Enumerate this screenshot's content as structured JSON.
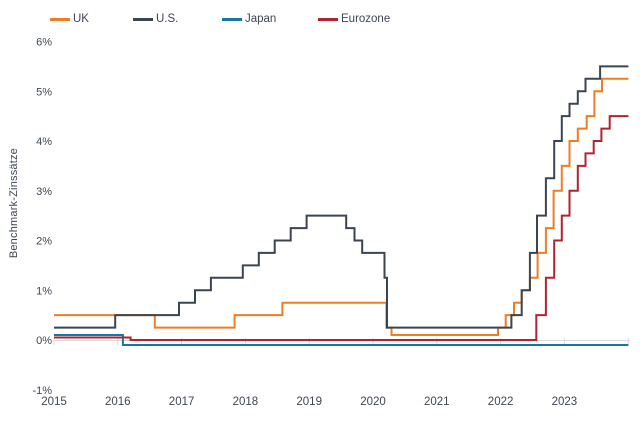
{
  "chart_data": {
    "type": "line",
    "variant": "step-after",
    "title": "",
    "xlabel": "",
    "ylabel": "Benchmark-Zinssätze",
    "unit": "%",
    "xlim": [
      2015,
      2024.05
    ],
    "ylim": [
      -1,
      6
    ],
    "grid": false,
    "legend_position": "top-left",
    "axis_color": "#d9d9d9",
    "text_color": "#3e4653",
    "background_color": "#ffffff",
    "x_ticks": [
      {
        "value": 2015,
        "label": "2015"
      },
      {
        "value": 2016,
        "label": "2016"
      },
      {
        "value": 2017,
        "label": "2017"
      },
      {
        "value": 2018,
        "label": "2018"
      },
      {
        "value": 2019,
        "label": "2019"
      },
      {
        "value": 2020,
        "label": "2020"
      },
      {
        "value": 2021,
        "label": "2021"
      },
      {
        "value": 2022,
        "label": "2022"
      },
      {
        "value": 2023,
        "label": "2023"
      }
    ],
    "y_ticks": [
      {
        "value": 6,
        "label": "6%"
      },
      {
        "value": 5,
        "label": "5%"
      },
      {
        "value": 4,
        "label": "4%"
      },
      {
        "value": 3,
        "label": "3%"
      },
      {
        "value": 2,
        "label": "2%"
      },
      {
        "value": 1,
        "label": "1%"
      },
      {
        "value": 0,
        "label": "0%"
      },
      {
        "value": -1,
        "label": "-1%"
      }
    ],
    "series": [
      {
        "name": "UK",
        "color": "#ee7d23",
        "points": [
          [
            2015.0,
            0.5
          ],
          [
            2016.58,
            0.25
          ],
          [
            2017.83,
            0.5
          ],
          [
            2018.58,
            0.75
          ],
          [
            2020.21,
            0.25
          ],
          [
            2020.29,
            0.1
          ],
          [
            2021.96,
            0.25
          ],
          [
            2022.08,
            0.5
          ],
          [
            2022.21,
            0.75
          ],
          [
            2022.33,
            1.0
          ],
          [
            2022.46,
            1.25
          ],
          [
            2022.58,
            1.75
          ],
          [
            2022.71,
            2.25
          ],
          [
            2022.83,
            3.0
          ],
          [
            2022.96,
            3.5
          ],
          [
            2023.08,
            4.0
          ],
          [
            2023.21,
            4.25
          ],
          [
            2023.35,
            4.5
          ],
          [
            2023.47,
            5.0
          ],
          [
            2023.59,
            5.25
          ],
          [
            2023.97,
            5.25
          ]
        ]
      },
      {
        "name": "Japan",
        "color": "#1578a2",
        "points": [
          [
            2015.0,
            0.1
          ],
          [
            2016.08,
            -0.1
          ],
          [
            2023.97,
            -0.1
          ]
        ]
      },
      {
        "name": "Eurozone",
        "color": "#b2232f",
        "points": [
          [
            2015.0,
            0.05
          ],
          [
            2016.2,
            0.0
          ],
          [
            2022.56,
            0.5
          ],
          [
            2022.71,
            1.25
          ],
          [
            2022.84,
            2.0
          ],
          [
            2022.96,
            2.5
          ],
          [
            2023.08,
            3.0
          ],
          [
            2023.21,
            3.5
          ],
          [
            2023.33,
            3.75
          ],
          [
            2023.46,
            4.0
          ],
          [
            2023.58,
            4.25
          ],
          [
            2023.71,
            4.5
          ],
          [
            2023.97,
            4.5
          ]
        ]
      },
      {
        "name": "U.S.",
        "color": "#3b4551",
        "points": [
          [
            2015.0,
            0.25
          ],
          [
            2015.96,
            0.5
          ],
          [
            2016.96,
            0.75
          ],
          [
            2017.21,
            1.0
          ],
          [
            2017.46,
            1.25
          ],
          [
            2017.96,
            1.5
          ],
          [
            2018.21,
            1.75
          ],
          [
            2018.46,
            2.0
          ],
          [
            2018.71,
            2.25
          ],
          [
            2018.96,
            2.5
          ],
          [
            2019.58,
            2.25
          ],
          [
            2019.71,
            2.0
          ],
          [
            2019.83,
            1.75
          ],
          [
            2020.18,
            1.25
          ],
          [
            2020.22,
            0.25
          ],
          [
            2022.17,
            0.5
          ],
          [
            2022.33,
            1.0
          ],
          [
            2022.46,
            1.75
          ],
          [
            2022.57,
            2.5
          ],
          [
            2022.71,
            3.25
          ],
          [
            2022.84,
            4.0
          ],
          [
            2022.96,
            4.5
          ],
          [
            2023.08,
            4.75
          ],
          [
            2023.21,
            5.0
          ],
          [
            2023.33,
            5.25
          ],
          [
            2023.56,
            5.5
          ],
          [
            2023.97,
            5.5
          ]
        ]
      }
    ],
    "legend_order": [
      "UK",
      "U.S.",
      "Japan",
      "Eurozone"
    ]
  }
}
